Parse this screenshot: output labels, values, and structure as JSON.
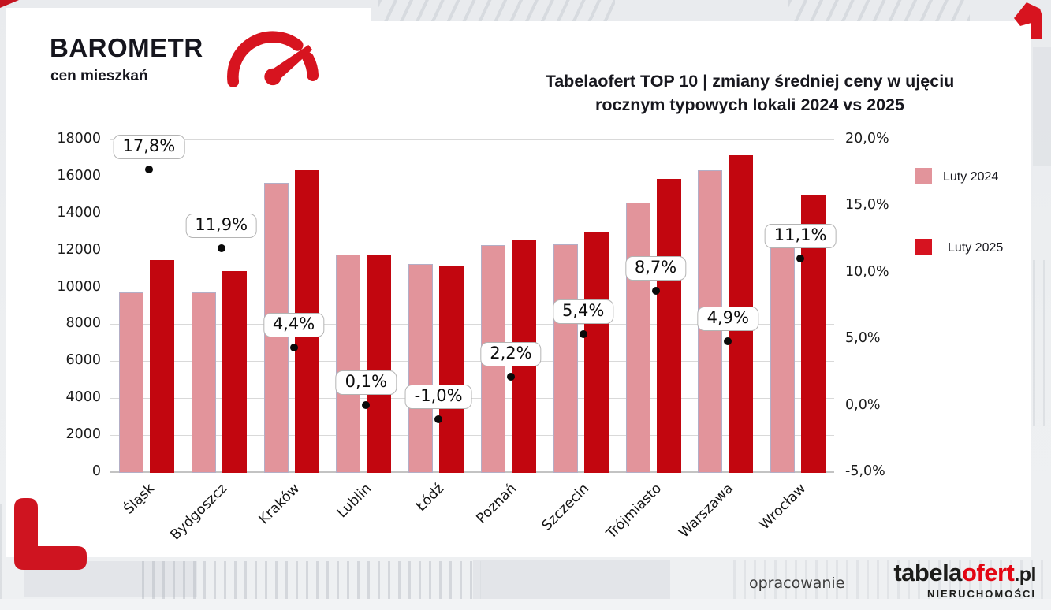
{
  "brand": {
    "title": "BAROMETR",
    "subtitle": "cen mieszkań"
  },
  "chart_data": {
    "type": "bar",
    "title": "Tabelaofert TOP 10 | zmiany średniej ceny w ujęciu rocznym typowych lokali 2024 vs 2025",
    "title_lines": [
      "Tabelaofert TOP 10 | zmiany średniej ceny w ujęciu",
      "rocznym typowych lokali 2024 vs 2025"
    ],
    "categories": [
      "Śląsk",
      "Bydgoszcz",
      "Kraków",
      "Lublin",
      "Łódź",
      "Poznań",
      "Szczecin",
      "Trójmiasto",
      "Warszawa",
      "Wrocław"
    ],
    "series": [
      {
        "name": "Luty 2024",
        "color": "#e2949b",
        "values": [
          9780,
          9780,
          15700,
          11800,
          11300,
          12340,
          12370,
          14650,
          16400,
          13500
        ]
      },
      {
        "name": "Luty 2025",
        "color": "#c2060f",
        "values": [
          11520,
          10940,
          16390,
          11810,
          11190,
          12610,
          13040,
          15920,
          17200,
          15000
        ]
      }
    ],
    "percent_change": {
      "values": [
        17.8,
        11.9,
        4.4,
        0.1,
        -1.0,
        2.2,
        5.4,
        8.7,
        4.9,
        11.1
      ],
      "labels": [
        "17,8%",
        "11,9%",
        "4,4%",
        "0,1%",
        "-1,0%",
        "2,2%",
        "5,4%",
        "8,7%",
        "4,9%",
        "11,1%"
      ],
      "marker_color": "#0a0a0a"
    },
    "left_axis": {
      "min": 0,
      "max": 18000,
      "step": 2000,
      "ticks": [
        0,
        2000,
        4000,
        6000,
        8000,
        10000,
        12000,
        14000,
        16000,
        18000
      ]
    },
    "right_axis": {
      "min": -5,
      "max": 20,
      "step": 5,
      "tick_values": [
        20,
        15,
        10,
        5,
        0,
        -5
      ],
      "tick_labels": [
        "20,0%",
        "15,0%",
        "10,0%",
        "5,0%",
        "0,0%",
        "-5,0%"
      ]
    },
    "legend": {
      "position": "right",
      "items": [
        "Luty 2024",
        "Luty 2025"
      ]
    },
    "grid": true
  },
  "footer": {
    "credit": "opracowanie",
    "logo": {
      "part1": "tabela",
      "part2": "ofert",
      "part3": ".pl",
      "sub": "NIERUCHOMOŚCI"
    }
  },
  "colors": {
    "brand_red": "#d7141f",
    "bar_2024": "#e2949b",
    "bar_2025": "#c2060f",
    "legend_2025": "#d61320",
    "marker": "#0a0a0a",
    "logo_red": "#e30613",
    "card_bg": "#ffffff",
    "page_bg": "#edeff1",
    "gridline": "#d9d9d9"
  }
}
